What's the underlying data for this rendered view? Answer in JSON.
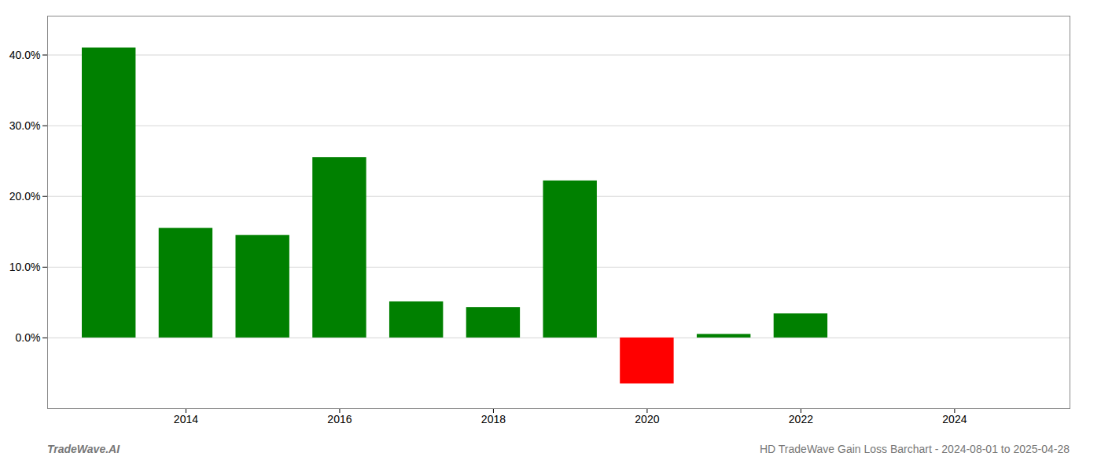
{
  "chart_data": {
    "type": "bar",
    "title": "HD TradeWave Gain Loss Barchart - 2024-08-01 to 2025-04-28",
    "annotations": [
      "TradeWave.AI"
    ],
    "x": [
      2013,
      2014,
      2015,
      2016,
      2017,
      2018,
      2019,
      2020,
      2021,
      2022,
      2023,
      2024
    ],
    "values": [
      0.41,
      0.155,
      0.145,
      0.255,
      0.051,
      0.043,
      0.222,
      -0.065,
      0.005,
      0.034,
      0.0,
      0.0
    ],
    "colors": [
      "#008000",
      "#008000",
      "#008000",
      "#008000",
      "#008000",
      "#008000",
      "#008000",
      "#ff0000",
      "#008000",
      "#008000",
      "#008000",
      "#008000"
    ],
    "xlim": [
      2012.2,
      2025.5
    ],
    "xticks": [
      2014,
      2016,
      2018,
      2020,
      2022,
      2024
    ],
    "ylim": [
      -0.1,
      0.455
    ],
    "yticks": [
      {
        "value": 0.0,
        "label": "0.0%"
      },
      {
        "value": 0.1,
        "label": "10.0%"
      },
      {
        "value": 0.2,
        "label": "20.0%"
      },
      {
        "value": 0.3,
        "label": "30.0%"
      },
      {
        "value": 0.4,
        "label": "40.0%"
      }
    ],
    "grid": true
  }
}
